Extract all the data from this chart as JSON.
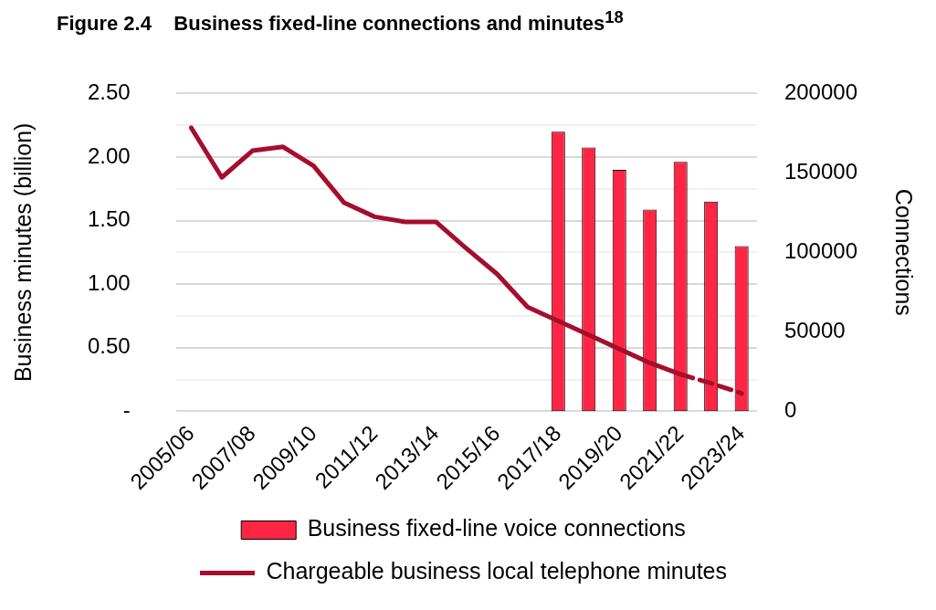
{
  "chart_data": {
    "type": "bar",
    "title": "Figure 2.4    Business fixed-line connections and minutes$^{18}$",
    "categories": [
      "2005/06",
      null,
      "2007/08",
      null,
      "2009/10",
      null,
      "2011/12",
      null,
      "2013/14",
      null,
      "2015/16",
      null,
      "2017/18",
      null,
      "2019/20",
      null,
      "2021/22",
      null,
      "2023/24"
    ],
    "series": [
      {
        "name": "Business fixed-line voice connections",
        "axis": "y2",
        "color": "#ff2645",
        "values": [
          null,
          null,
          null,
          null,
          null,
          null,
          null,
          null,
          null,
          null,
          null,
          null,
          176000,
          166000,
          152000,
          127000,
          157000,
          132000,
          104000
        ]
      },
      {
        "name": "Chargeable business local telephone minutes",
        "type": "line",
        "axis": "y",
        "color": "#a50e2d",
        "line_style": "solid",
        "values": [
          2.23,
          1.84,
          2.05,
          2.08,
          1.93,
          1.64,
          1.53,
          1.49,
          1.49,
          1.28,
          1.08,
          0.82,
          0.71,
          0.6,
          0.49,
          0.38,
          0.29,
          null,
          null
        ]
      },
      {
        "type": "line",
        "axis": "y",
        "color": "#a50e2d",
        "line_style": "dashed",
        "values": [
          null,
          null,
          null,
          null,
          null,
          null,
          null,
          null,
          null,
          null,
          null,
          null,
          null,
          null,
          null,
          null,
          0.29,
          0.22,
          0.14
        ]
      }
    ],
    "ylabel": "Business minutes (billion)",
    "y2label": "Connections",
    "ylim": [
      0,
      2.5
    ],
    "yticks": [
      {
        "value": 0,
        "label": "-"
      },
      {
        "value": 0.25,
        "label": null
      },
      {
        "value": 0.5,
        "label": "0.50"
      },
      {
        "value": 0.75,
        "label": null
      },
      {
        "value": 1,
        "label": "1.00"
      },
      {
        "value": 1.25,
        "label": null
      },
      {
        "value": 1.5,
        "label": "1.50"
      },
      {
        "value": 1.75,
        "label": null
      },
      {
        "value": 2,
        "label": "2.00"
      },
      {
        "value": 2.25,
        "label": null
      },
      {
        "value": 2.5,
        "label": "2.50"
      }
    ],
    "y2lim": [
      0,
      200000
    ],
    "y2ticks": [
      0,
      50000,
      100000,
      150000,
      200000
    ],
    "grid": "y",
    "legend": "bottom"
  }
}
